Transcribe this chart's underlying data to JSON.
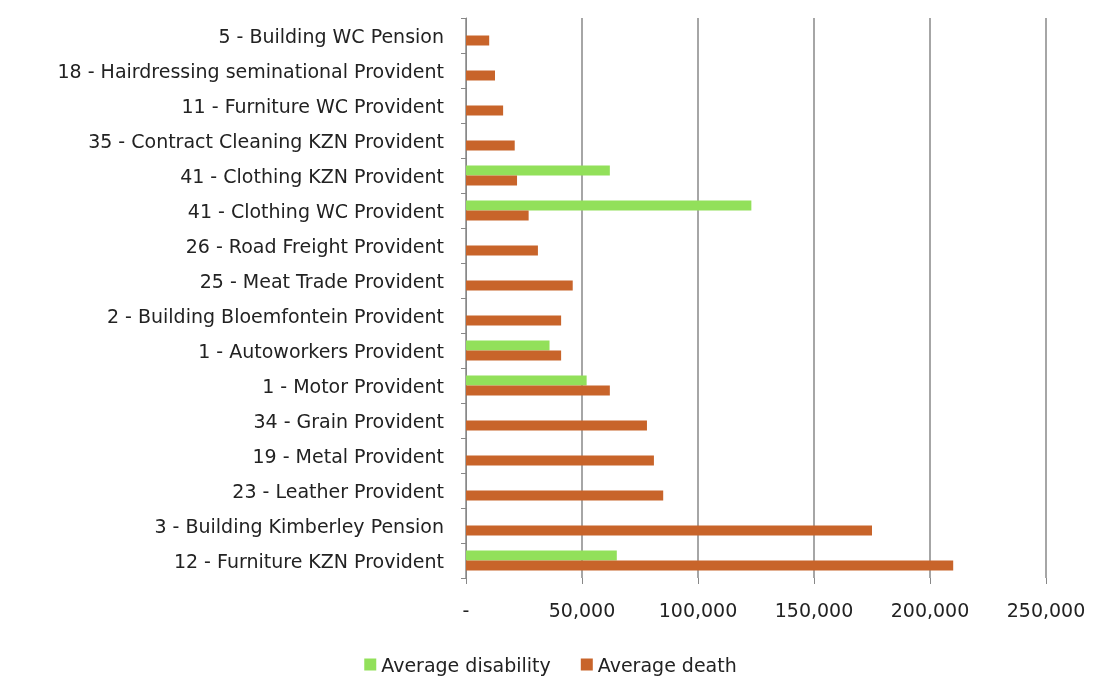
{
  "chart_data": {
    "type": "bar",
    "orientation": "horizontal",
    "categories": [
      "5 - Building WC Pension",
      "18 - Hairdressing seminational Provident",
      "11 - Furniture WC Provident",
      "35 - Contract Cleaning KZN Provident",
      "41 - Clothing KZN Provident",
      "41 - Clothing WC Provident",
      "26 - Road Freight Provident",
      "25 - Meat Trade Provident",
      "2 - Building Bloemfontein Provident",
      "1 - Autoworkers Provident",
      "1 - Motor Provident",
      "34 - Grain Provident",
      "19 - Metal Provident",
      "23 - Leather Provident",
      "3 - Building Kimberley Pension",
      "12 - Furniture KZN Provident"
    ],
    "series": [
      {
        "name": "Average disability",
        "color": "#92e05a",
        "values": [
          null,
          null,
          null,
          null,
          62000,
          123000,
          null,
          null,
          null,
          36000,
          52000,
          null,
          null,
          null,
          null,
          65000
        ]
      },
      {
        "name": "Average death",
        "color": "#c8642a",
        "values": [
          10000,
          12500,
          16000,
          21000,
          22000,
          27000,
          31000,
          46000,
          41000,
          41000,
          62000,
          78000,
          81000,
          85000,
          175000,
          210000
        ]
      }
    ],
    "xlim": [
      0,
      250000
    ],
    "xticks": [
      {
        "value": 0,
        "label": "-"
      },
      {
        "value": 50000,
        "label": "50,000"
      },
      {
        "value": 100000,
        "label": "100,000"
      },
      {
        "value": 150000,
        "label": "150,000"
      },
      {
        "value": 200000,
        "label": "200,000"
      },
      {
        "value": 250000,
        "label": "250,000"
      }
    ],
    "grid": "x",
    "legend": "bottom"
  }
}
